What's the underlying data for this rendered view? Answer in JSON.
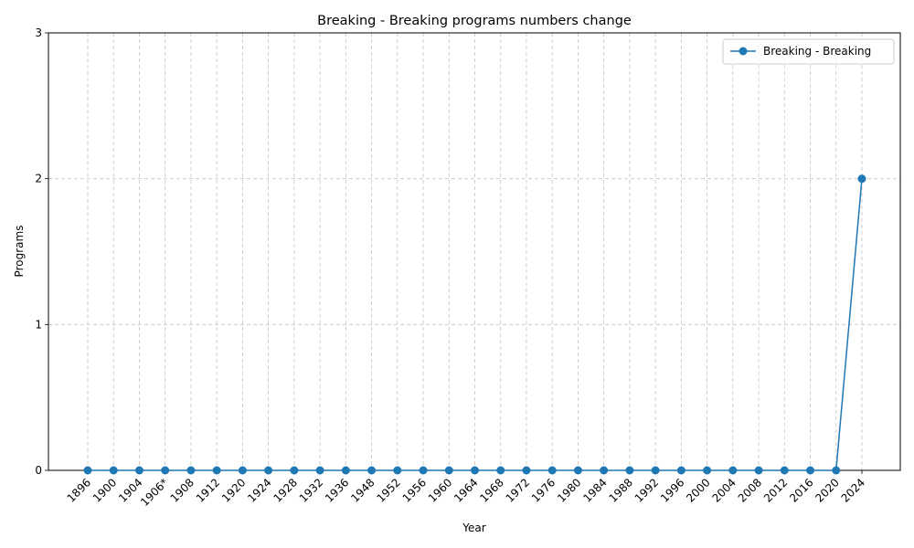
{
  "chart_data": {
    "type": "line",
    "title": "Breaking - Breaking programs numbers change",
    "xlabel": "Year",
    "ylabel": "Programs",
    "categories": [
      "1896",
      "1900",
      "1904",
      "1906*",
      "1908",
      "1912",
      "1920",
      "1924",
      "1928",
      "1932",
      "1936",
      "1948",
      "1952",
      "1956",
      "1960",
      "1964",
      "1968",
      "1972",
      "1976",
      "1980",
      "1984",
      "1988",
      "1992",
      "1996",
      "2000",
      "2004",
      "2008",
      "2012",
      "2016",
      "2020",
      "2024"
    ],
    "series": [
      {
        "name": "Breaking - Breaking",
        "values": [
          0,
          0,
          0,
          0,
          0,
          0,
          0,
          0,
          0,
          0,
          0,
          0,
          0,
          0,
          0,
          0,
          0,
          0,
          0,
          0,
          0,
          0,
          0,
          0,
          0,
          0,
          0,
          0,
          0,
          0,
          2
        ],
        "color": "#1f77b4"
      }
    ],
    "ylim": [
      0,
      3
    ],
    "yticks": [
      0,
      1,
      2,
      3
    ],
    "grid": true,
    "legend": "top-right"
  }
}
